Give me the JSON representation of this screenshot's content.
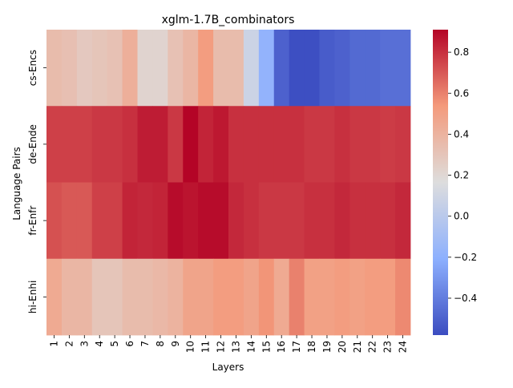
{
  "chart_data": {
    "type": "heatmap",
    "title": "xglm-1.7B_combinators",
    "xlabel": "Layers",
    "ylabel": "Language Pairs",
    "x": [
      "1",
      "2",
      "3",
      "4",
      "5",
      "6",
      "7",
      "8",
      "9",
      "10",
      "11",
      "12",
      "13",
      "14",
      "15",
      "16",
      "17",
      "18",
      "19",
      "20",
      "21",
      "22",
      "23",
      "24"
    ],
    "y": [
      "cs-Encs",
      "de-Ende",
      "fr-Enfr",
      "hi-Enhi"
    ],
    "values": [
      [
        0.35,
        0.33,
        0.28,
        0.3,
        0.32,
        0.42,
        0.22,
        0.22,
        0.32,
        0.38,
        0.52,
        0.35,
        0.35,
        0.08,
        -0.18,
        -0.5,
        -0.57,
        -0.57,
        -0.52,
        -0.5,
        -0.47,
        -0.47,
        -0.45,
        -0.45
      ],
      [
        0.76,
        0.76,
        0.76,
        0.78,
        0.78,
        0.8,
        0.85,
        0.85,
        0.78,
        0.91,
        0.83,
        0.86,
        0.8,
        0.8,
        0.8,
        0.8,
        0.8,
        0.78,
        0.78,
        0.8,
        0.78,
        0.78,
        0.77,
        0.78
      ],
      [
        0.72,
        0.7,
        0.7,
        0.76,
        0.76,
        0.83,
        0.82,
        0.83,
        0.89,
        0.87,
        0.89,
        0.89,
        0.82,
        0.8,
        0.78,
        0.78,
        0.78,
        0.8,
        0.8,
        0.82,
        0.8,
        0.8,
        0.8,
        0.82
      ],
      [
        0.45,
        0.38,
        0.38,
        0.3,
        0.3,
        0.35,
        0.35,
        0.37,
        0.4,
        0.48,
        0.48,
        0.52,
        0.52,
        0.48,
        0.55,
        0.45,
        0.6,
        0.5,
        0.5,
        0.52,
        0.5,
        0.52,
        0.52,
        0.58
      ]
    ],
    "colormap": "coolwarm",
    "vmin": -0.58,
    "vmax": 0.91,
    "colorbar_ticks": [
      -0.4,
      -0.2,
      0.0,
      0.2,
      0.4,
      0.6,
      0.8
    ],
    "colorbar_tick_labels": [
      "−0.4",
      "−0.2",
      "0.0",
      "0.2",
      "0.4",
      "0.6",
      "0.8"
    ]
  }
}
